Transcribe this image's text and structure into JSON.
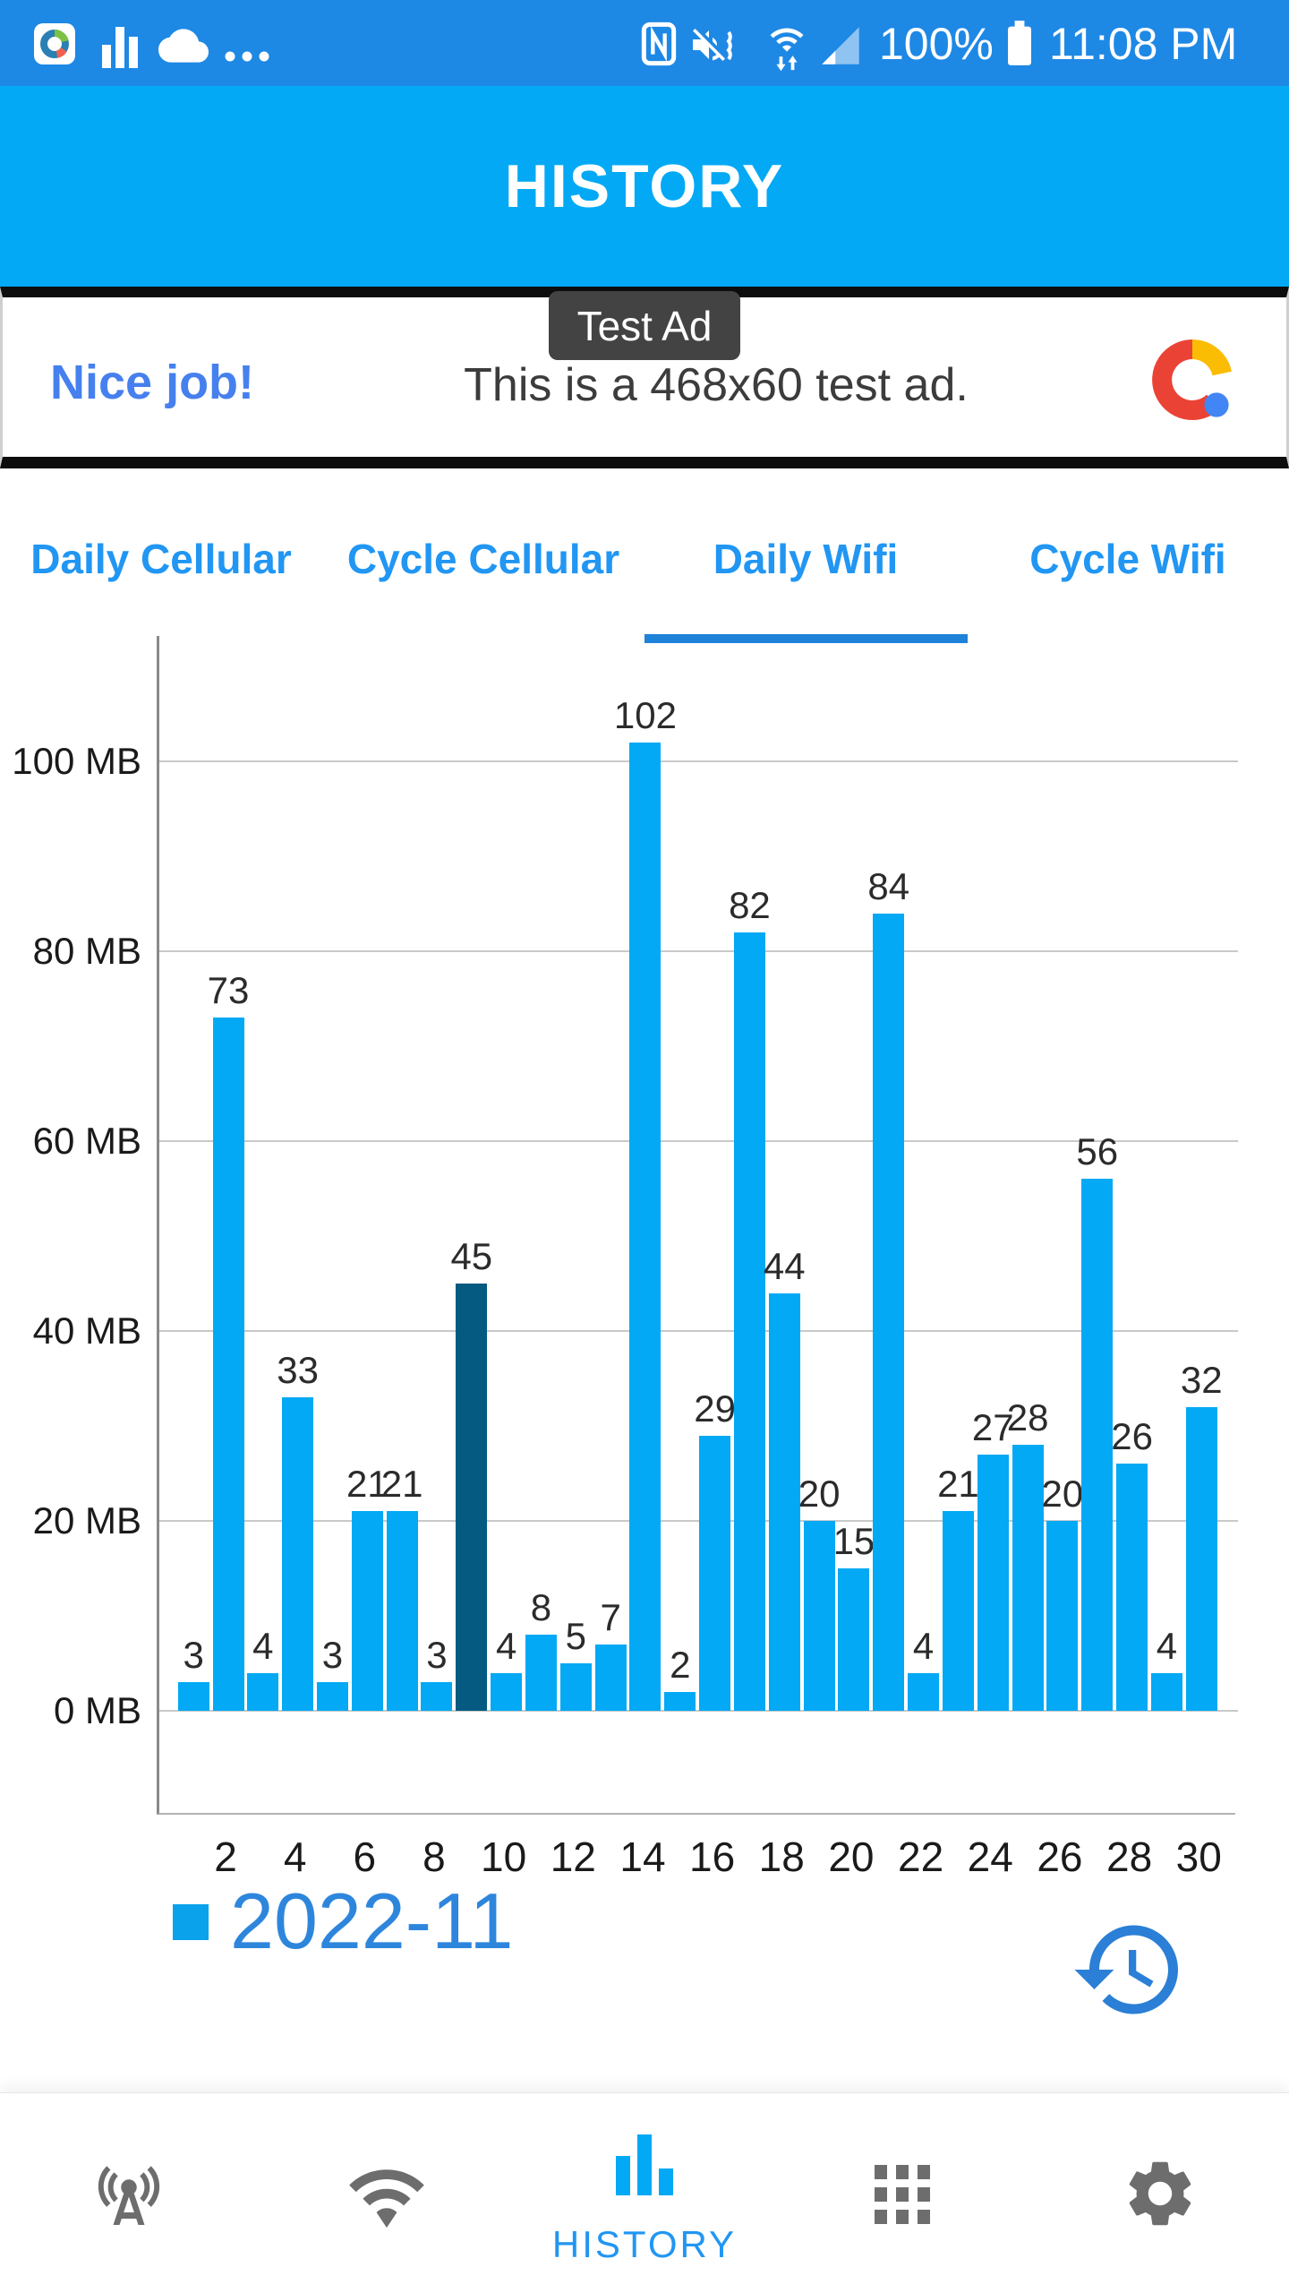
{
  "status_bar": {
    "time": "11:08 PM",
    "battery_level": "100%",
    "left_icons": [
      "app-icon",
      "stats-bars-icon",
      "cloud-icon",
      "overflow-dots-icon"
    ],
    "right_icons": [
      "nfc-icon",
      "mute-vibrate-icon",
      "wifi-arrows-icon",
      "cell-signal-icon",
      "battery-icon"
    ]
  },
  "header": {
    "title": "HISTORY"
  },
  "ad": {
    "badge": "Test Ad",
    "headline": "Nice job!",
    "headline_color": "#4680ee",
    "body": "This is a 468x60 test ad.",
    "logo": "admob-logo"
  },
  "tabs": [
    {
      "label": "Daily Cellular",
      "active": false
    },
    {
      "label": "Cycle Cellular",
      "active": false
    },
    {
      "label": "Daily Wifi",
      "active": true
    },
    {
      "label": "Cycle Wifi",
      "active": false
    }
  ],
  "chart_data": {
    "type": "bar",
    "title": "",
    "xlabel": "",
    "ylabel": "",
    "x": [
      1,
      2,
      3,
      4,
      5,
      6,
      7,
      8,
      9,
      10,
      11,
      12,
      13,
      14,
      15,
      16,
      17,
      18,
      19,
      20,
      21,
      22,
      23,
      24,
      25,
      26,
      27,
      28,
      29,
      30
    ],
    "values": [
      3,
      73,
      4,
      33,
      3,
      21,
      21,
      3,
      45,
      4,
      8,
      5,
      7,
      102,
      2,
      29,
      82,
      44,
      20,
      15,
      84,
      4,
      21,
      27,
      28,
      20,
      56,
      26,
      4,
      32
    ],
    "unit": "MB",
    "highlighted_day": 9,
    "y_ticks": [
      "0 MB",
      "20 MB",
      "40 MB",
      "60 MB",
      "80 MB",
      "100 MB"
    ],
    "x_tick_labels": [
      "2",
      "4",
      "6",
      "8",
      "10",
      "12",
      "14",
      "16",
      "18",
      "20",
      "22",
      "24",
      "26",
      "28",
      "30"
    ],
    "ylim": [
      0,
      113
    ],
    "grid": true,
    "bar_color": "#03a9f4",
    "highlight_color": "#045a80",
    "legend": {
      "label": "2022-11",
      "swatch_color": "#09a2eb",
      "position": "bottom-left"
    }
  },
  "history_button": "history-restore-icon",
  "nav": {
    "items": [
      {
        "name": "cellular",
        "icon": "cell-tower-icon",
        "label": "",
        "active": false
      },
      {
        "name": "wifi",
        "icon": "wifi-icon",
        "label": "",
        "active": false
      },
      {
        "name": "history",
        "icon": "bar-chart-icon",
        "label": "HISTORY",
        "active": true
      },
      {
        "name": "apps",
        "icon": "grid-icon",
        "label": "",
        "active": false
      },
      {
        "name": "settings",
        "icon": "gear-icon",
        "label": "",
        "active": false
      }
    ]
  },
  "colors": {
    "status_bar_bg": "#1e88e5",
    "header_bg": "#03a9f4",
    "tab_blue": "#2196f3",
    "gridline": "#c9c9c9",
    "legend_text": "#2e86dc",
    "nav_gray": "#6d6d6d"
  }
}
